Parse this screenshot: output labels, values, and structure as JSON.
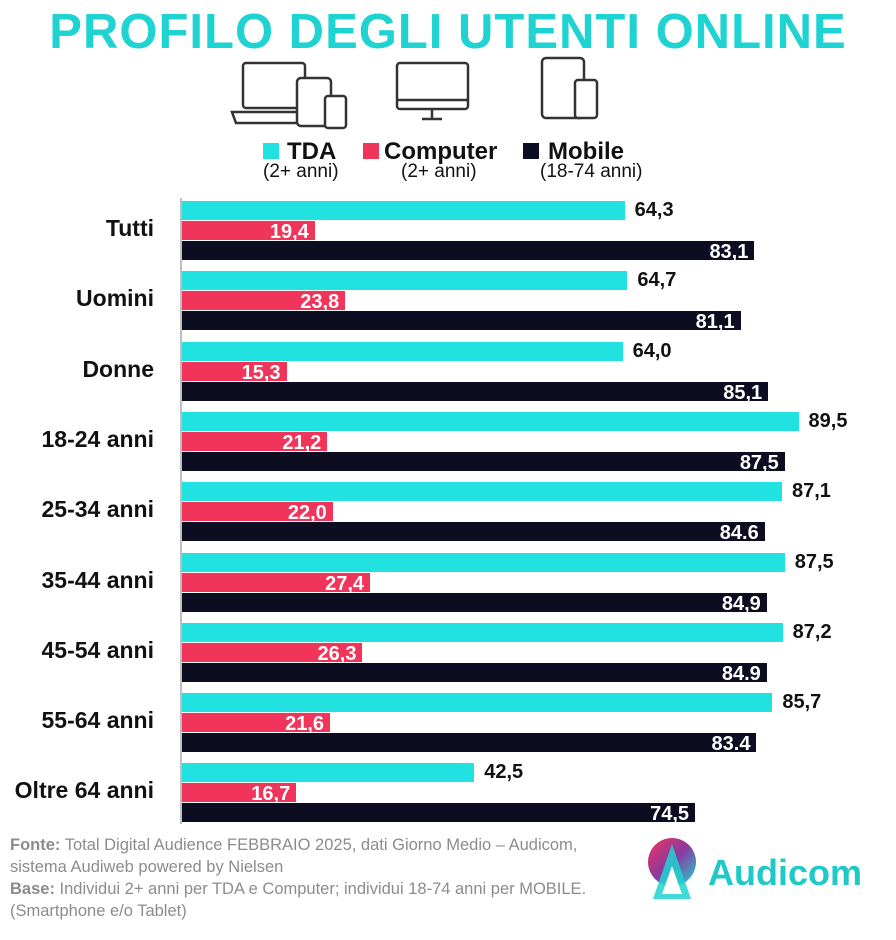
{
  "title": "PROFILO DEGLI UTENTI ONLINE",
  "colors": {
    "tda": "#22e1e1",
    "computer": "#f0345a",
    "mobile": "#0d0d22",
    "title": "#1fd3d2"
  },
  "icons": [
    "laptop-tablet-phone-icon",
    "desktop-monitor-icon",
    "tablet-phone-icon"
  ],
  "legend": [
    {
      "name": "TDA",
      "sub": "(2+ anni)"
    },
    {
      "name": "Computer",
      "sub": "(2+ anni)"
    },
    {
      "name": "Mobile",
      "sub": "(18-74 anni)"
    }
  ],
  "chart_data": {
    "type": "bar",
    "orientation": "horizontal",
    "categories": [
      "Tutti",
      "Uomini",
      "Donne",
      "18-24 anni",
      "25-34 anni",
      "35-44 anni",
      "45-54 anni",
      "55-64 anni",
      "Oltre 64 anni"
    ],
    "series": [
      {
        "name": "TDA",
        "values": [
          64.3,
          64.7,
          64.0,
          89.5,
          87.1,
          87.5,
          87.2,
          85.7,
          42.5
        ],
        "labels": [
          "64,3",
          "64,7",
          "64,0",
          "89,5",
          "87,1",
          "87,5",
          "87,2",
          "85,7",
          "42,5"
        ]
      },
      {
        "name": "Computer",
        "values": [
          19.4,
          23.8,
          15.3,
          21.2,
          22.0,
          27.4,
          26.3,
          21.6,
          16.7
        ],
        "labels": [
          "19,4",
          "23,8",
          "15,3",
          "21,2",
          "22,0",
          "27,4",
          "26,3",
          "21,6",
          "16,7"
        ]
      },
      {
        "name": "Mobile",
        "values": [
          83.1,
          81.1,
          85.1,
          87.5,
          84.6,
          84.9,
          84.9,
          83.4,
          74.5
        ],
        "labels": [
          "83,1",
          "81,1",
          "85,1",
          "87,5",
          "84.6",
          "84,9",
          "84.9",
          "83.4",
          "74,5"
        ]
      }
    ],
    "xlim": [
      0,
      100
    ],
    "grid": false
  },
  "footnote": {
    "fonte_label": "Fonte:",
    "fonte_text": " Total Digital Audience FEBBRAIO 2025, dati Giorno Medio – Audicom, sistema Audiweb powered by Nielsen",
    "base_label": "Base:",
    "base_text": "  Individui 2+ anni per TDA e Computer; individui 18-74 anni per MOBILE.(Smartphone e/o Tablet)"
  },
  "brand": "Audicom"
}
